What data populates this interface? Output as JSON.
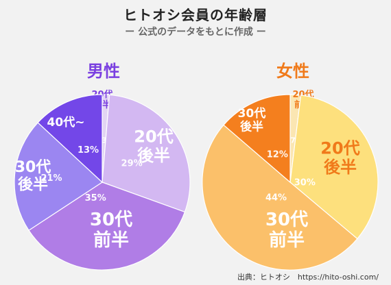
{
  "title": "ヒトオシ会員の年齢層",
  "subtitle": "ー 公式のデータをもとに作成 ー",
  "source": "出典：ヒトオシ　https://hito-oshi.com/",
  "colors": {
    "male_heading": "#7a3fe0",
    "female_heading": "#f07a1a",
    "label_dark": "#ffffff"
  },
  "chart_data": [
    {
      "type": "pie",
      "title": "男性",
      "unit": "%",
      "slices": [
        {
          "label_lines": [
            "20代",
            "前半"
          ],
          "value": 1.3,
          "pct_label": "1.3%",
          "color": "#e2d5f3",
          "text_color": "#7a3fe0"
        },
        {
          "label_lines": [
            "20代",
            "後半"
          ],
          "value": 29,
          "pct_label": "29%",
          "color": "#d3b8f2",
          "text_color": "#ffffff"
        },
        {
          "label_lines": [
            "30代",
            "前半"
          ],
          "value": 35,
          "pct_label": "35%",
          "color": "#b07de6",
          "text_color": "#ffffff"
        },
        {
          "label_lines": [
            "30代",
            "後半"
          ],
          "value": 21,
          "pct_label": "21%",
          "color": "#9b86f1",
          "text_color": "#ffffff"
        },
        {
          "label_lines": [
            "40代~"
          ],
          "value": 13,
          "pct_label": "13%",
          "color": "#7347e8",
          "text_color": "#ffffff"
        }
      ]
    },
    {
      "type": "pie",
      "title": "女性",
      "unit": "%",
      "slices": [
        {
          "label_lines": [
            "20代",
            "前半"
          ],
          "value": 1.7,
          "pct_label": "1.7%",
          "color": "#fbe6b2",
          "text_color": "#f07a1a"
        },
        {
          "label_lines": [
            "20代",
            "後半"
          ],
          "value": 30,
          "pct_label": "30%",
          "color": "#fde07d",
          "text_color": "#f07a1a"
        },
        {
          "label_lines": [
            "30代",
            "前半"
          ],
          "value": 44,
          "pct_label": "44%",
          "color": "#fbc06a",
          "text_color": "#ffffff"
        },
        {
          "label_lines": [
            "30代",
            "後半"
          ],
          "value": 12,
          "pct_label": "12%",
          "color": "#f47f1e",
          "text_color": "#ffffff"
        }
      ]
    }
  ]
}
